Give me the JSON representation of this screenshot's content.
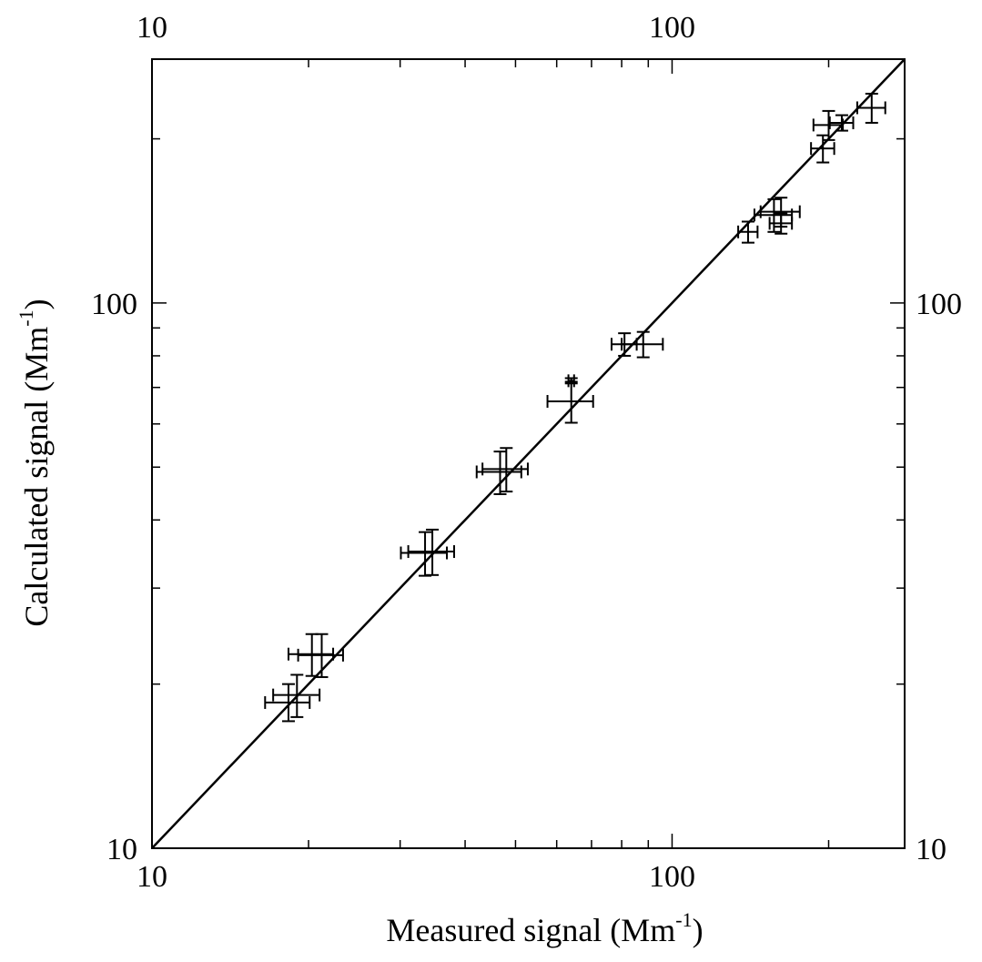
{
  "chart_data": {
    "type": "scatter",
    "title": "",
    "xlabel": "Measured signal  (Mm",
    "xlabel_sup": "-1",
    "xlabel_close": ")",
    "ylabel": "Calculated signal  (Mm",
    "ylabel_sup": "-1",
    "ylabel_close": ")",
    "x_scale": "log",
    "y_scale": "log",
    "xlim": [
      10,
      280
    ],
    "ylim": [
      10,
      280
    ],
    "major_ticks": [
      10,
      100
    ],
    "minor_ticks": [
      20,
      30,
      40,
      50,
      60,
      70,
      80,
      90,
      200
    ],
    "bottom_tick_labels": [
      "10",
      "100"
    ],
    "top_tick_labels": [
      "10",
      "100"
    ],
    "left_tick_labels": [
      "10",
      "100"
    ],
    "right_tick_labels": [
      "10",
      "100"
    ],
    "reference_line": "y = x",
    "grid": false,
    "legend": "none",
    "points": [
      {
        "x": 18.3,
        "y": 18.5,
        "xerr_lo": 1.8,
        "xerr_hi": 1.8,
        "yerr_lo": 1.4,
        "yerr_hi": 1.5
      },
      {
        "x": 19.0,
        "y": 19.1,
        "xerr_lo": 1.9,
        "xerr_hi": 2.0,
        "yerr_lo": 1.7,
        "yerr_hi": 1.7
      },
      {
        "x": 20.3,
        "y": 22.7,
        "xerr_lo": 2.0,
        "xerr_hi": 2.0,
        "yerr_lo": 2.0,
        "yerr_hi": 2.0
      },
      {
        "x": 21.2,
        "y": 22.6,
        "xerr_lo": 2.1,
        "xerr_hi": 2.1,
        "yerr_lo": 2.0,
        "yerr_hi": 2.1
      },
      {
        "x": 33.5,
        "y": 34.8,
        "xerr_lo": 3.4,
        "xerr_hi": 3.4,
        "yerr_lo": 3.2,
        "yerr_hi": 3.2
      },
      {
        "x": 34.6,
        "y": 35.0,
        "xerr_lo": 3.5,
        "xerr_hi": 3.5,
        "yerr_lo": 3.3,
        "yerr_hi": 3.4
      },
      {
        "x": 46.7,
        "y": 49.0,
        "xerr_lo": 4.6,
        "xerr_hi": 4.6,
        "yerr_lo": 4.4,
        "yerr_hi": 4.4
      },
      {
        "x": 48.0,
        "y": 49.6,
        "xerr_lo": 4.8,
        "xerr_hi": 4.8,
        "yerr_lo": 4.5,
        "yerr_hi": 4.6
      },
      {
        "x": 64.0,
        "y": 66.0,
        "xerr_lo": 6.4,
        "xerr_hi": 6.5,
        "yerr_lo": 5.7,
        "yerr_hi": 5.7
      },
      {
        "x": 64.0,
        "y": 72.0,
        "xerr_lo": 0.8,
        "xerr_hi": 0.8,
        "yerr_lo": 0.8,
        "yerr_hi": 0.8
      },
      {
        "x": 81.0,
        "y": 84.0,
        "xerr_lo": 4.5,
        "xerr_hi": 4.5,
        "yerr_lo": 4.0,
        "yerr_hi": 4.0
      },
      {
        "x": 88.0,
        "y": 84.0,
        "xerr_lo": 8.0,
        "xerr_hi": 8.0,
        "yerr_lo": 4.5,
        "yerr_hi": 4.5
      },
      {
        "x": 140.0,
        "y": 135.0,
        "xerr_lo": 6.0,
        "xerr_hi": 6.0,
        "yerr_lo": 6.0,
        "yerr_hi": 6.0
      },
      {
        "x": 157.0,
        "y": 145.0,
        "xerr_lo": 13.0,
        "xerr_hi": 13.0,
        "yerr_lo": 10.0,
        "yerr_hi": 10.0
      },
      {
        "x": 162.0,
        "y": 147.0,
        "xerr_lo": 14.0,
        "xerr_hi": 14.0,
        "yerr_lo": 9.0,
        "yerr_hi": 9.0
      },
      {
        "x": 162.0,
        "y": 140.0,
        "xerr_lo": 8.0,
        "xerr_hi": 8.0,
        "yerr_lo": 6.0,
        "yerr_hi": 6.0
      },
      {
        "x": 195.0,
        "y": 192.0,
        "xerr_lo": 10.0,
        "xerr_hi": 10.0,
        "yerr_lo": 11.0,
        "yerr_hi": 11.0
      },
      {
        "x": 200.0,
        "y": 212.0,
        "xerr_lo": 13.0,
        "xerr_hi": 13.0,
        "yerr_lo": 13.0,
        "yerr_hi": 13.0
      },
      {
        "x": 212.0,
        "y": 214.0,
        "xerr_lo": 11.0,
        "xerr_hi": 11.0,
        "yerr_lo": 7.0,
        "yerr_hi": 7.0
      },
      {
        "x": 242.0,
        "y": 228.0,
        "xerr_lo": 15.0,
        "xerr_hi": 15.0,
        "yerr_lo": 14.0,
        "yerr_hi": 14.0
      }
    ]
  }
}
